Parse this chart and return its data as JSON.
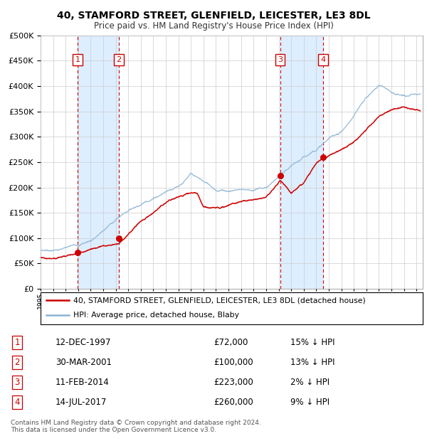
{
  "title": "40, STAMFORD STREET, GLENFIELD, LEICESTER, LE3 8DL",
  "subtitle": "Price paid vs. HM Land Registry's House Price Index (HPI)",
  "legend_line1": "40, STAMFORD STREET, GLENFIELD, LEICESTER, LE3 8DL (detached house)",
  "legend_line2": "HPI: Average price, detached house, Blaby",
  "footer1": "Contains HM Land Registry data © Crown copyright and database right 2024.",
  "footer2": "This data is licensed under the Open Government Licence v3.0.",
  "transactions": [
    {
      "num": 1,
      "date": "12-DEC-1997",
      "price": 72000,
      "pct": "15%",
      "year": 1997.95
    },
    {
      "num": 2,
      "date": "30-MAR-2001",
      "price": 100000,
      "pct": "13%",
      "year": 2001.25
    },
    {
      "num": 3,
      "date": "11-FEB-2014",
      "price": 223000,
      "pct": "2%",
      "year": 2014.12
    },
    {
      "num": 4,
      "date": "14-JUL-2017",
      "price": 260000,
      "pct": "9%",
      "year": 2017.54
    }
  ],
  "hpi_color": "#8ab4d4",
  "paid_color": "#cc0000",
  "point_color": "#cc0000",
  "shade_color": "#ddeeff",
  "vline_color": "#cc0000",
  "grid_color": "#cccccc",
  "bg_color": "#ffffff",
  "ylim": [
    0,
    500000
  ],
  "xlim_start": 1995.0,
  "xlim_end": 2025.5,
  "ytick_step": 50000,
  "hpi_anchors_x": [
    1995,
    1996,
    1997,
    1998,
    1999,
    2000,
    2001,
    2002,
    2003,
    2004,
    2005,
    2006,
    2007,
    2008,
    2009,
    2010,
    2011,
    2012,
    2013,
    2014,
    2015,
    2016,
    2017,
    2018,
    2019,
    2020,
    2021,
    2022,
    2023,
    2024,
    2025.3
  ],
  "hpi_anchors_y": [
    76000,
    78000,
    82000,
    88000,
    98000,
    118000,
    140000,
    160000,
    175000,
    190000,
    205000,
    220000,
    242000,
    225000,
    210000,
    210000,
    215000,
    215000,
    220000,
    240000,
    255000,
    270000,
    290000,
    310000,
    325000,
    355000,
    390000,
    415000,
    405000,
    395000,
    395000
  ],
  "paid_anchors_x": [
    1995,
    1996,
    1997,
    1997.95,
    1998,
    1999,
    2000,
    2001.25,
    2002,
    2003,
    2004,
    2005,
    2006,
    2007,
    2007.5,
    2008,
    2008.5,
    2009,
    2010,
    2011,
    2012,
    2013,
    2014.12,
    2015,
    2016,
    2017,
    2017.54,
    2018,
    2019,
    2020,
    2021,
    2022,
    2023,
    2024,
    2025.3
  ],
  "paid_anchors_y": [
    62000,
    64000,
    68000,
    72000,
    76000,
    82000,
    93000,
    100000,
    120000,
    145000,
    165000,
    185000,
    200000,
    208000,
    205000,
    178000,
    175000,
    177000,
    180000,
    188000,
    190000,
    193000,
    223000,
    198000,
    215000,
    250000,
    260000,
    265000,
    278000,
    295000,
    320000,
    345000,
    360000,
    368000,
    362000
  ]
}
